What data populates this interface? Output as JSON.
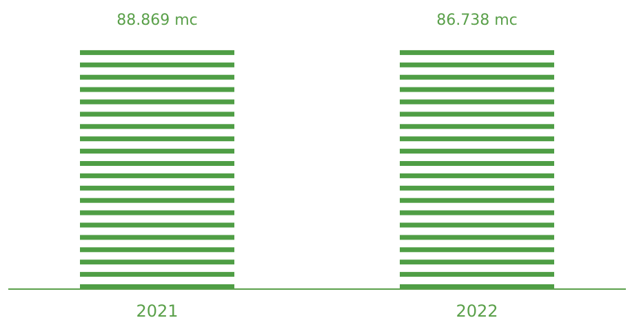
{
  "chart_data": {
    "type": "bar",
    "categories": [
      "2021",
      "2022"
    ],
    "values": [
      88869,
      86738
    ],
    "data_labels": [
      "88.869 mc",
      "86.738 mc"
    ],
    "title": "",
    "xlabel": "",
    "ylabel": "",
    "grid": false,
    "legend": "none",
    "colors": {
      "bar": "#4f9e45",
      "faded": "#c8dcbf",
      "axis": "#5aa04a",
      "text": "#5aa04a"
    }
  }
}
